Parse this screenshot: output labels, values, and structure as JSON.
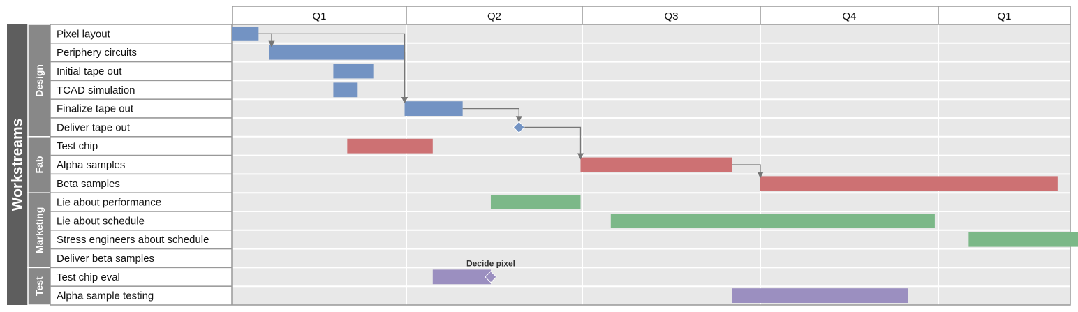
{
  "chart_data": {
    "type": "gantt",
    "title": "",
    "axis_label": "Workstreams",
    "quarters": [
      "Q1",
      "Q2",
      "Q3",
      "Q4",
      "Q1"
    ],
    "colors": {
      "Design": "#7393c3",
      "Fab": "#cd7173",
      "Marketing": "#7cb888",
      "Test": "#9b8fc0",
      "grid_bg": "#e8e8e8",
      "label_bg": "#888888",
      "axis_bg": "#5e5e5e"
    },
    "groups": [
      {
        "name": "Design",
        "tasks": [
          {
            "label": "Pixel layout",
            "start": 0.0,
            "end": 0.15
          },
          {
            "label": "Periphery circuits",
            "start": 0.21,
            "end": 0.99
          },
          {
            "label": "Initial tape out",
            "start": 0.58,
            "end": 0.81
          },
          {
            "label": "TCAD simulation",
            "start": 0.58,
            "end": 0.72
          },
          {
            "label": "Finalize tape out",
            "start": 0.99,
            "end": 1.32
          },
          {
            "label": "Deliver tape out",
            "milestone": 1.64
          }
        ]
      },
      {
        "name": "Fab",
        "tasks": [
          {
            "label": "Test chip",
            "start": 0.66,
            "end": 1.15
          },
          {
            "label": "Alpha samples",
            "start": 1.99,
            "end": 2.84
          },
          {
            "label": "Beta samples",
            "start": 3.0,
            "end": 4.67
          }
        ]
      },
      {
        "name": "Marketing",
        "tasks": [
          {
            "label": "Lie about performance",
            "start": 1.48,
            "end": 1.99
          },
          {
            "label": "Lie about schedule",
            "start": 2.16,
            "end": 3.98
          },
          {
            "label": "Stress engineers about schedule",
            "start": 4.17,
            "end": 4.8
          },
          {
            "label": "Deliver beta samples"
          }
        ]
      },
      {
        "name": "Test",
        "tasks": [
          {
            "label": "Test chip eval",
            "start": 1.15,
            "end": 1.48,
            "milestone": 1.48
          },
          {
            "label": "Alpha sample testing",
            "start": 2.84,
            "end": 3.83
          }
        ]
      }
    ],
    "dependencies": [
      {
        "from": "Pixel layout",
        "to": "Periphery circuits"
      },
      {
        "from": "Pixel layout",
        "to": "Finalize tape out"
      },
      {
        "from": "Periphery circuits",
        "to": "Finalize tape out"
      },
      {
        "from": "Finalize tape out",
        "to": "Deliver tape out"
      },
      {
        "from": "Deliver tape out",
        "to": "Alpha samples"
      },
      {
        "from": "Alpha samples",
        "to": "Beta samples"
      }
    ],
    "annotations": [
      {
        "text": "Decide pixel",
        "task": "Test chip eval",
        "at": 1.48
      }
    ]
  }
}
